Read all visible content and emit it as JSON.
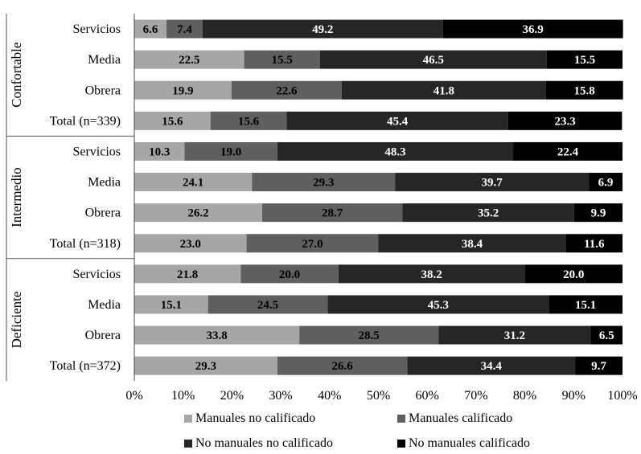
{
  "chart_data": {
    "type": "bar",
    "orientation": "horizontal",
    "stacked": true,
    "percent_stacked": true,
    "x_ticks": [
      "0%",
      "10%",
      "20%",
      "30%",
      "40%",
      "50%",
      "60%",
      "70%",
      "80%",
      "90%",
      "100%"
    ],
    "xlim": [
      0,
      100
    ],
    "legend_position": "bottom",
    "grid": false,
    "series": [
      {
        "name": "Manuales no calificado",
        "color": "#a6a6a6",
        "label_color": "#000000"
      },
      {
        "name": "Manuales calificado",
        "color": "#5f5f5f",
        "label_color": "#000000"
      },
      {
        "name": "No manuales no calificado",
        "color": "#262626",
        "label_color": "#ffffff"
      },
      {
        "name": "No manuales calificado",
        "color": "#000000",
        "label_color": "#ffffff"
      }
    ],
    "groups": [
      {
        "name": "Confortable",
        "rows": [
          {
            "label": "Servicios",
            "values": [
              6.6,
              7.4,
              49.2,
              36.9
            ]
          },
          {
            "label": "Media",
            "values": [
              22.5,
              15.5,
              46.5,
              15.5
            ]
          },
          {
            "label": "Obrera",
            "values": [
              19.9,
              22.6,
              41.8,
              15.8
            ]
          },
          {
            "label": "Total (n=339)",
            "values": [
              15.6,
              15.6,
              45.4,
              23.3
            ]
          }
        ]
      },
      {
        "name": "Intermedio",
        "rows": [
          {
            "label": "Servicios",
            "values": [
              10.3,
              19.0,
              48.3,
              22.4
            ]
          },
          {
            "label": "Media",
            "values": [
              24.1,
              29.3,
              39.7,
              6.9
            ]
          },
          {
            "label": "Obrera",
            "values": [
              26.2,
              28.7,
              35.2,
              9.9
            ]
          },
          {
            "label": "Total (n=318)",
            "values": [
              23.0,
              27.0,
              38.4,
              11.6
            ]
          }
        ]
      },
      {
        "name": "Deficiente",
        "rows": [
          {
            "label": "Servicios",
            "values": [
              21.8,
              20.0,
              38.2,
              20.0
            ]
          },
          {
            "label": "Media",
            "values": [
              15.1,
              24.5,
              45.3,
              15.1
            ]
          },
          {
            "label": "Obrera",
            "values": [
              33.8,
              28.5,
              31.2,
              6.5
            ]
          },
          {
            "label": "Total (n=372)",
            "values": [
              29.3,
              26.6,
              34.4,
              9.7
            ]
          }
        ]
      }
    ]
  }
}
